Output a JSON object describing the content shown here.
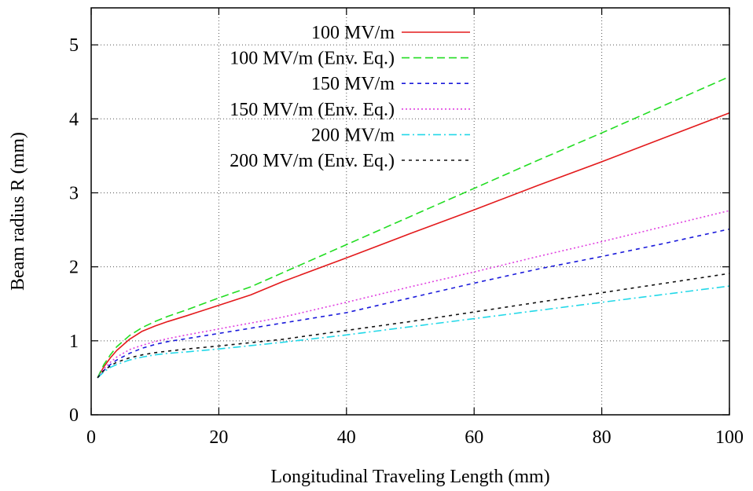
{
  "chart_data": {
    "type": "line",
    "title": "",
    "xlabel": "Longitudinal Traveling Length (mm)",
    "ylabel": "Beam radius R (mm)",
    "xlim": [
      0,
      100
    ],
    "ylim": [
      0,
      5.5
    ],
    "xticks": [
      0,
      20,
      40,
      60,
      80,
      100
    ],
    "yticks": [
      0,
      1,
      2,
      3,
      4,
      5
    ],
    "grid": true,
    "legend_position": "top-left",
    "series": [
      {
        "name": "100 MV/m",
        "color": "#e31a1c",
        "dash": "solid",
        "x": [
          1,
          2,
          3,
          4,
          6,
          8,
          10,
          12,
          15,
          20,
          25,
          30,
          40,
          50,
          60,
          70,
          80,
          90,
          100
        ],
        "y": [
          0.5,
          0.65,
          0.77,
          0.87,
          1.02,
          1.13,
          1.2,
          1.26,
          1.34,
          1.48,
          1.62,
          1.8,
          2.12,
          2.45,
          2.77,
          3.1,
          3.42,
          3.75,
          4.08
        ]
      },
      {
        "name": "100 MV/m (Env. Eq.)",
        "color": "#22dd22",
        "dash": "long-dash",
        "x": [
          1,
          2,
          3,
          4,
          6,
          8,
          10,
          12,
          15,
          20,
          25,
          30,
          40,
          50,
          60,
          70,
          80,
          90,
          100
        ],
        "y": [
          0.5,
          0.68,
          0.81,
          0.92,
          1.07,
          1.18,
          1.26,
          1.33,
          1.42,
          1.58,
          1.73,
          1.92,
          2.3,
          2.68,
          3.06,
          3.44,
          3.81,
          4.19,
          4.57
        ]
      },
      {
        "name": "150 MV/m",
        "color": "#1a1adb",
        "dash": "short-dash",
        "x": [
          1,
          2,
          3,
          4,
          6,
          8,
          10,
          12,
          15,
          20,
          30,
          40,
          50,
          60,
          70,
          80,
          90,
          100
        ],
        "y": [
          0.5,
          0.6,
          0.68,
          0.74,
          0.83,
          0.9,
          0.95,
          0.99,
          1.03,
          1.1,
          1.24,
          1.38,
          1.58,
          1.78,
          1.97,
          2.14,
          2.32,
          2.51
        ]
      },
      {
        "name": "150 MV/m (Env. Eq.)",
        "color": "#e040e0",
        "dash": "dot",
        "x": [
          1,
          2,
          3,
          4,
          6,
          8,
          10,
          12,
          15,
          20,
          30,
          40,
          50,
          60,
          70,
          80,
          90,
          100
        ],
        "y": [
          0.5,
          0.62,
          0.71,
          0.78,
          0.88,
          0.94,
          0.99,
          1.03,
          1.08,
          1.16,
          1.32,
          1.52,
          1.73,
          1.93,
          2.14,
          2.34,
          2.55,
          2.76
        ]
      },
      {
        "name": "200 MV/m",
        "color": "#22d8e8",
        "dash": "dash-dot",
        "x": [
          1,
          2,
          3,
          4,
          6,
          8,
          10,
          12,
          15,
          20,
          30,
          40,
          50,
          60,
          70,
          80,
          90,
          100
        ],
        "y": [
          0.5,
          0.58,
          0.64,
          0.68,
          0.74,
          0.78,
          0.81,
          0.83,
          0.85,
          0.89,
          0.98,
          1.08,
          1.19,
          1.3,
          1.41,
          1.52,
          1.63,
          1.74
        ]
      },
      {
        "name": "200 MV/m (Env. Eq.)",
        "color": "#111111",
        "dash": "fine-dash",
        "x": [
          1,
          2,
          3,
          4,
          6,
          8,
          10,
          12,
          15,
          20,
          30,
          40,
          50,
          60,
          70,
          80,
          90,
          100
        ],
        "y": [
          0.5,
          0.6,
          0.66,
          0.71,
          0.77,
          0.81,
          0.84,
          0.86,
          0.89,
          0.93,
          1.02,
          1.14,
          1.26,
          1.39,
          1.52,
          1.65,
          1.78,
          1.91
        ]
      }
    ]
  }
}
